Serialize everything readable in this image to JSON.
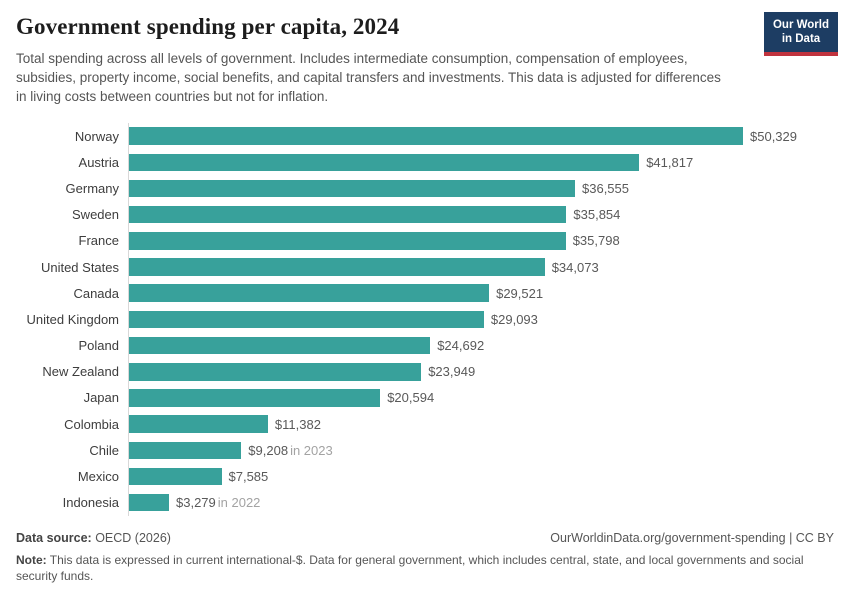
{
  "header": {
    "title": "Government spending per capita, 2024",
    "subtitle": "Total spending across all levels of government. Includes intermediate consumption, compensation of employees, subsidies, property income, social benefits, and capital transfers and investments. This data is adjusted for differences in living costs between countries but not for inflation.",
    "logo": {
      "line1": "Our World",
      "line2": "in Data",
      "bg_color": "#1d3d63",
      "accent_color": "#c0333e"
    }
  },
  "chart_data": {
    "type": "bar",
    "orientation": "horizontal",
    "title": "Government spending per capita, 2024",
    "unit": "current international-$",
    "xlim": [
      0,
      50329
    ],
    "grid": false,
    "legend": "none",
    "bar_color": "#38a19b",
    "axis_line_color": "#d8d8d8",
    "categories": [
      "Norway",
      "Austria",
      "Germany",
      "Sweden",
      "France",
      "United States",
      "Canada",
      "United Kingdom",
      "Poland",
      "New Zealand",
      "Japan",
      "Colombia",
      "Chile",
      "Mexico",
      "Indonesia"
    ],
    "values": [
      50329,
      41817,
      36555,
      35854,
      35798,
      34073,
      29521,
      29093,
      24692,
      23949,
      20594,
      11382,
      9208,
      7585,
      3279
    ],
    "rows": [
      {
        "label": "Norway",
        "value": 50329,
        "display": "$50,329",
        "suffix": ""
      },
      {
        "label": "Austria",
        "value": 41817,
        "display": "$41,817",
        "suffix": ""
      },
      {
        "label": "Germany",
        "value": 36555,
        "display": "$36,555",
        "suffix": ""
      },
      {
        "label": "Sweden",
        "value": 35854,
        "display": "$35,854",
        "suffix": ""
      },
      {
        "label": "France",
        "value": 35798,
        "display": "$35,798",
        "suffix": ""
      },
      {
        "label": "United States",
        "value": 34073,
        "display": "$34,073",
        "suffix": ""
      },
      {
        "label": "Canada",
        "value": 29521,
        "display": "$29,521",
        "suffix": ""
      },
      {
        "label": "United Kingdom",
        "value": 29093,
        "display": "$29,093",
        "suffix": ""
      },
      {
        "label": "Poland",
        "value": 24692,
        "display": "$24,692",
        "suffix": ""
      },
      {
        "label": "New Zealand",
        "value": 23949,
        "display": "$23,949",
        "suffix": ""
      },
      {
        "label": "Japan",
        "value": 20594,
        "display": "$20,594",
        "suffix": ""
      },
      {
        "label": "Colombia",
        "value": 11382,
        "display": "$11,382",
        "suffix": ""
      },
      {
        "label": "Chile",
        "value": 9208,
        "display": "$9,208",
        "suffix": "in 2023"
      },
      {
        "label": "Mexico",
        "value": 7585,
        "display": "$7,585",
        "suffix": ""
      },
      {
        "label": "Indonesia",
        "value": 3279,
        "display": "$3,279",
        "suffix": "in 2022"
      }
    ]
  },
  "footer": {
    "source_label": "Data source:",
    "source_value": " OECD (2026)",
    "link": "OurWorldinData.org/government-spending | CC BY",
    "note_label": "Note:",
    "note_value": " This data is expressed in current international-$. Data for general government, which includes central, state, and local governments and social security funds."
  }
}
